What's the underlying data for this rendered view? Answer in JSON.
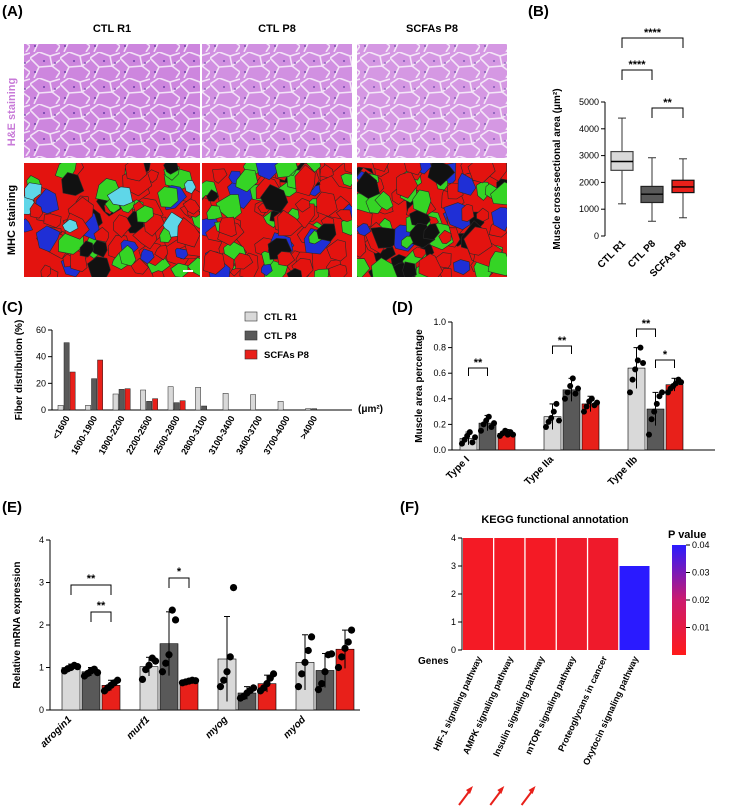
{
  "panel_labels": {
    "A": "(A)",
    "B": "(B)",
    "C": "(C)",
    "D": "(D)",
    "E": "(E)",
    "F": "(F)"
  },
  "colors": {
    "ctl_r1": "#d9d9d9",
    "ctl_p8": "#595959",
    "scfas_p8": "#e8201a",
    "he": "#c87ad8",
    "kegg_low": "#ff1a1a",
    "kegg_high": "#2a1aff"
  },
  "panel_a": {
    "col_titles": [
      "CTL R1",
      "CTL P8",
      "SCFAs P8"
    ],
    "row_labels": [
      "H&E staining",
      "MHC staining"
    ]
  },
  "chart_data": [
    {
      "id": "B",
      "type": "boxplot",
      "ylabel": "Muscle cross-sectional area (μm²)",
      "ylim": [
        0,
        5000
      ],
      "yticks": [
        0,
        1000,
        2000,
        3000,
        4000,
        5000
      ],
      "categories": [
        "CTL R1",
        "CTL P8",
        "SCFAs P8"
      ],
      "boxes": [
        {
          "name": "CTL R1",
          "min": 1200,
          "q1": 2450,
          "median": 2780,
          "q3": 3150,
          "max": 4400
        },
        {
          "name": "CTL P8",
          "min": 550,
          "q1": 1250,
          "median": 1560,
          "q3": 1850,
          "max": 2920
        },
        {
          "name": "SCFAs P8",
          "min": 680,
          "q1": 1620,
          "median": 1830,
          "q3": 2080,
          "max": 2880
        }
      ],
      "annotations": [
        {
          "pair": [
            "CTL R1",
            "SCFAs P8"
          ],
          "text": "****"
        },
        {
          "pair": [
            "CTL R1",
            "CTL P8"
          ],
          "text": "****"
        },
        {
          "pair": [
            "CTL P8",
            "SCFAs P8"
          ],
          "text": "**"
        }
      ]
    },
    {
      "id": "C",
      "type": "bar",
      "ylabel": "Fiber distribution (%)",
      "xunit": "(μm²)",
      "ylim": [
        0,
        60
      ],
      "yticks": [
        0,
        20,
        40,
        60
      ],
      "categories": [
        "<1600",
        "1600-1900",
        "1900-2200",
        "2200-2500",
        "2500-2800",
        "2800-3100",
        "3100-3400",
        "3400-3700",
        "3700-4000",
        ">4000"
      ],
      "series": [
        {
          "name": "CTL R1",
          "values": [
            3.5,
            3.5,
            12,
            15,
            17.5,
            17,
            12.5,
            11.5,
            6.5,
            1
          ]
        },
        {
          "name": "CTL P8",
          "values": [
            50.5,
            23.5,
            15.5,
            6.5,
            5.5,
            3,
            0,
            0,
            0,
            1
          ]
        },
        {
          "name": "SCFAs P8",
          "values": [
            28.5,
            37.5,
            16,
            8.5,
            7,
            0,
            0,
            0,
            0,
            0
          ]
        }
      ]
    },
    {
      "id": "D",
      "type": "bar",
      "ylabel": "Muscle area percentage",
      "ylim": [
        0,
        1
      ],
      "yticks": [
        "0.0",
        "0.2",
        "0.4",
        "0.6",
        "0.8",
        "1.0"
      ],
      "categories": [
        "Type I",
        "Type IIa",
        "Type IIb"
      ],
      "series": [
        {
          "name": "CTL R1",
          "values": [
            0.09,
            0.26,
            0.64
          ],
          "err": [
            0.05,
            0.1,
            0.16
          ]
        },
        {
          "name": "CTL P8",
          "values": [
            0.21,
            0.47,
            0.32
          ],
          "err": [
            0.06,
            0.09,
            0.13
          ]
        },
        {
          "name": "SCFAs P8",
          "values": [
            0.13,
            0.36,
            0.51
          ],
          "err": [
            0.03,
            0.06,
            0.05
          ]
        }
      ],
      "points": [
        [
          [
            0.05,
            0.08,
            0.11,
            0.14,
            0.06,
            0.1
          ],
          [
            0.15,
            0.2,
            0.23,
            0.26,
            0.18,
            0.21
          ],
          [
            0.11,
            0.13,
            0.15,
            0.12,
            0.14,
            0.12
          ]
        ],
        [
          [
            0.18,
            0.22,
            0.25,
            0.3,
            0.36,
            0.23
          ],
          [
            0.4,
            0.45,
            0.5,
            0.56,
            0.44,
            0.48
          ],
          [
            0.3,
            0.34,
            0.38,
            0.4,
            0.35,
            0.37
          ]
        ],
        [
          [
            0.45,
            0.55,
            0.63,
            0.7,
            0.8,
            0.68
          ],
          [
            0.12,
            0.24,
            0.3,
            0.36,
            0.42,
            0.45
          ],
          [
            0.45,
            0.48,
            0.5,
            0.52,
            0.55,
            0.53
          ]
        ]
      ],
      "annotations": [
        {
          "group": 0,
          "pair": [
            0,
            1
          ],
          "text": "**"
        },
        {
          "group": 1,
          "pair": [
            0,
            1
          ],
          "text": "**"
        },
        {
          "group": 2,
          "pair": [
            0,
            1
          ],
          "text": "**"
        },
        {
          "group": 2,
          "pair": [
            1,
            2
          ],
          "text": "*"
        }
      ]
    },
    {
      "id": "E",
      "type": "bar",
      "ylabel": "Relative mRNA expression",
      "ylim": [
        0,
        4
      ],
      "yticks": [
        0,
        1,
        2,
        3,
        4
      ],
      "categories": [
        "atrogin1",
        "murf1",
        "myog",
        "myod"
      ],
      "series": [
        {
          "name": "CTL R1",
          "values": [
            1.0,
            1.02,
            1.2,
            1.12
          ],
          "err": [
            0.08,
            0.22,
            1.0,
            0.65
          ]
        },
        {
          "name": "CTL P8",
          "values": [
            0.9,
            1.56,
            0.4,
            0.93
          ],
          "err": [
            0.1,
            0.75,
            0.15,
            0.4
          ]
        },
        {
          "name": "SCFAs P8",
          "values": [
            0.58,
            0.68,
            0.62,
            1.43
          ],
          "err": [
            0.12,
            0.05,
            0.2,
            0.45
          ]
        }
      ],
      "points": [
        [
          [
            0.92,
            0.97,
            1.0,
            1.05,
            1.02
          ],
          [
            0.8,
            0.86,
            0.92,
            0.96,
            0.88
          ],
          [
            0.45,
            0.52,
            0.58,
            0.64,
            0.7
          ]
        ],
        [
          [
            0.72,
            0.95,
            1.05,
            1.22,
            1.15
          ],
          [
            0.9,
            1.1,
            1.3,
            2.35,
            2.12
          ],
          [
            0.64,
            0.66,
            0.68,
            0.7,
            0.69
          ]
        ],
        [
          [
            0.55,
            0.7,
            0.9,
            1.25,
            2.88
          ],
          [
            0.28,
            0.32,
            0.4,
            0.46,
            0.52
          ],
          [
            0.45,
            0.52,
            0.62,
            0.75,
            0.85
          ]
        ],
        [
          [
            0.55,
            0.85,
            1.12,
            1.4,
            1.72
          ],
          [
            0.48,
            0.62,
            0.9,
            1.3,
            1.32
          ],
          [
            1.0,
            1.25,
            1.45,
            1.6,
            1.88
          ]
        ]
      ],
      "annotations": [
        {
          "group": 0,
          "pair": [
            0,
            2
          ],
          "text": "**"
        },
        {
          "group": 0,
          "pair": [
            1,
            2
          ],
          "text": "**"
        },
        {
          "group": 1,
          "pair": [
            1,
            2
          ],
          "text": "*"
        }
      ]
    },
    {
      "id": "F",
      "type": "bar",
      "title": "KEGG functional annotation",
      "ylabel": "Genes",
      "ylim": [
        0,
        4
      ],
      "yticks": [
        0,
        1,
        2,
        3,
        4
      ],
      "categories": [
        "HIF-1 signaling pathway",
        "AMPK signaling pathway",
        "Insulin signaling pathway",
        "mTOR signaling pathway",
        "Proteoglycans in cancer",
        "Oxytocin signaling pathway"
      ],
      "values": [
        4,
        4,
        4,
        4,
        4,
        3
      ],
      "pvalues": [
        0.002,
        0.002,
        0.002,
        0.003,
        0.003,
        0.04
      ],
      "highlighted": [
        true,
        true,
        true,
        false,
        false,
        false
      ],
      "colorbar": {
        "label": "P value",
        "ticks": [
          "0.04",
          "0.03",
          "0.02",
          "0.01"
        ],
        "range": [
          0,
          0.04
        ]
      }
    }
  ]
}
